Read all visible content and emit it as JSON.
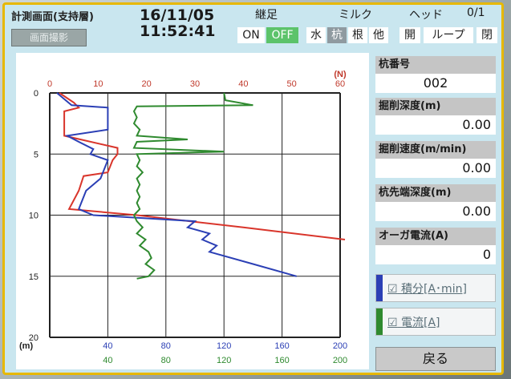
{
  "header": {
    "screen_title": "計測画面(支持層)",
    "capture_button": "画面撮影",
    "date": "16/11/05",
    "time": "11:52:41"
  },
  "keisoku": {
    "title": "継足",
    "on": "ON",
    "off": "OFF"
  },
  "milk": {
    "title": "ミルク",
    "options": [
      "水",
      "杭",
      "根",
      "他"
    ],
    "selected": "杭"
  },
  "head": {
    "title": "ヘッド",
    "count": "0/1",
    "options": [
      "開",
      "ループ",
      "閉"
    ]
  },
  "sidebar": {
    "pile_number_label": "杭番号",
    "pile_number": "002",
    "excavation_depth_label": "掘削深度(m)",
    "excavation_depth": "0.00",
    "excavation_speed_label": "掘削速度(m/min)",
    "excavation_speed": "0.00",
    "pile_tip_depth_label": "杭先端深度(m)",
    "pile_tip_depth": "0.00",
    "auger_current_label": "オーガ電流(A)",
    "auger_current": "0",
    "legend_integral": "積分[A･min]",
    "legend_current": "電流[A]",
    "legend_check": "☑",
    "back_button": "戻る"
  },
  "colors": {
    "frame": "#e7b800",
    "panel": "#c9e6ef",
    "off_active": "#5cc36a",
    "series_red": "#d9352b",
    "series_blue": "#2b3fb5",
    "series_green": "#2f8a2f",
    "top_axis": "#c0392b"
  },
  "chart_data": {
    "type": "line",
    "y_axis": {
      "ticks": [
        "0",
        "5",
        "10",
        "15",
        "20"
      ],
      "unit": "(m)",
      "ylim": [
        0,
        20
      ],
      "inverted": true
    },
    "x_top": {
      "ticks": [
        "0",
        "10",
        "20",
        "30",
        "40",
        "50",
        "60"
      ],
      "unit": "(N)",
      "xlim": [
        0,
        60
      ]
    },
    "x_bottom_1": {
      "ticks": [
        "40",
        "80",
        "120",
        "160",
        "200"
      ],
      "xlim": [
        0,
        200
      ]
    },
    "x_bottom_2": {
      "ticks": [
        "40",
        "80",
        "120",
        "160",
        "200"
      ],
      "xlim": [
        0,
        200
      ]
    },
    "grid": true,
    "series": [
      {
        "color": "#d9352b",
        "axis": "N",
        "points": [
          [
            2,
            0.0
          ],
          [
            5,
            0.8
          ],
          [
            6,
            1.2
          ],
          [
            3,
            1.5
          ],
          [
            3,
            3.5
          ],
          [
            14,
            4.5
          ],
          [
            14,
            5.0
          ],
          [
            13,
            5.5
          ],
          [
            12,
            6.5
          ],
          [
            7,
            6.8
          ],
          [
            6,
            8.0
          ],
          [
            4,
            9.5
          ],
          [
            18,
            10.0
          ],
          [
            40,
            11.0
          ],
          [
            63,
            12.0
          ]
        ]
      },
      {
        "color": "#2b3fb5",
        "axis": "bottom_1",
        "points": [
          [
            5,
            0.0
          ],
          [
            15,
            1.0
          ],
          [
            40,
            1.2
          ],
          [
            40,
            3.0
          ],
          [
            12,
            3.5
          ],
          [
            20,
            4.0
          ],
          [
            30,
            4.6
          ],
          [
            28,
            5.0
          ],
          [
            40,
            5.5
          ],
          [
            35,
            7.0
          ],
          [
            25,
            8.0
          ],
          [
            20,
            9.5
          ],
          [
            30,
            10.0
          ],
          [
            100,
            10.5
          ],
          [
            95,
            11.0
          ],
          [
            110,
            11.5
          ],
          [
            105,
            12.0
          ],
          [
            115,
            12.5
          ],
          [
            110,
            13.0
          ],
          [
            140,
            14.0
          ],
          [
            170,
            15.0
          ]
        ]
      },
      {
        "color": "#2f8a2f",
        "axis": "bottom_2",
        "points": [
          [
            120,
            0.0
          ],
          [
            121,
            0.6
          ],
          [
            140,
            1.0
          ],
          [
            60,
            1.1
          ],
          [
            58,
            1.5
          ],
          [
            60,
            2.0
          ],
          [
            58,
            2.5
          ],
          [
            62,
            3.0
          ],
          [
            60,
            3.5
          ],
          [
            95,
            3.8
          ],
          [
            60,
            4.0
          ],
          [
            58,
            4.5
          ],
          [
            120,
            4.8
          ],
          [
            60,
            5.0
          ],
          [
            62,
            5.5
          ],
          [
            60,
            6.0
          ],
          [
            64,
            6.5
          ],
          [
            60,
            7.0
          ],
          [
            62,
            7.5
          ],
          [
            60,
            8.0
          ],
          [
            62,
            8.5
          ],
          [
            60,
            9.0
          ],
          [
            62,
            9.5
          ],
          [
            58,
            10.0
          ],
          [
            60,
            10.5
          ],
          [
            64,
            11.0
          ],
          [
            60,
            11.5
          ],
          [
            66,
            12.0
          ],
          [
            62,
            12.5
          ],
          [
            68,
            13.0
          ],
          [
            70,
            13.5
          ],
          [
            66,
            14.0
          ],
          [
            72,
            14.5
          ],
          [
            68,
            15.0
          ],
          [
            60,
            15.2
          ]
        ]
      }
    ]
  }
}
